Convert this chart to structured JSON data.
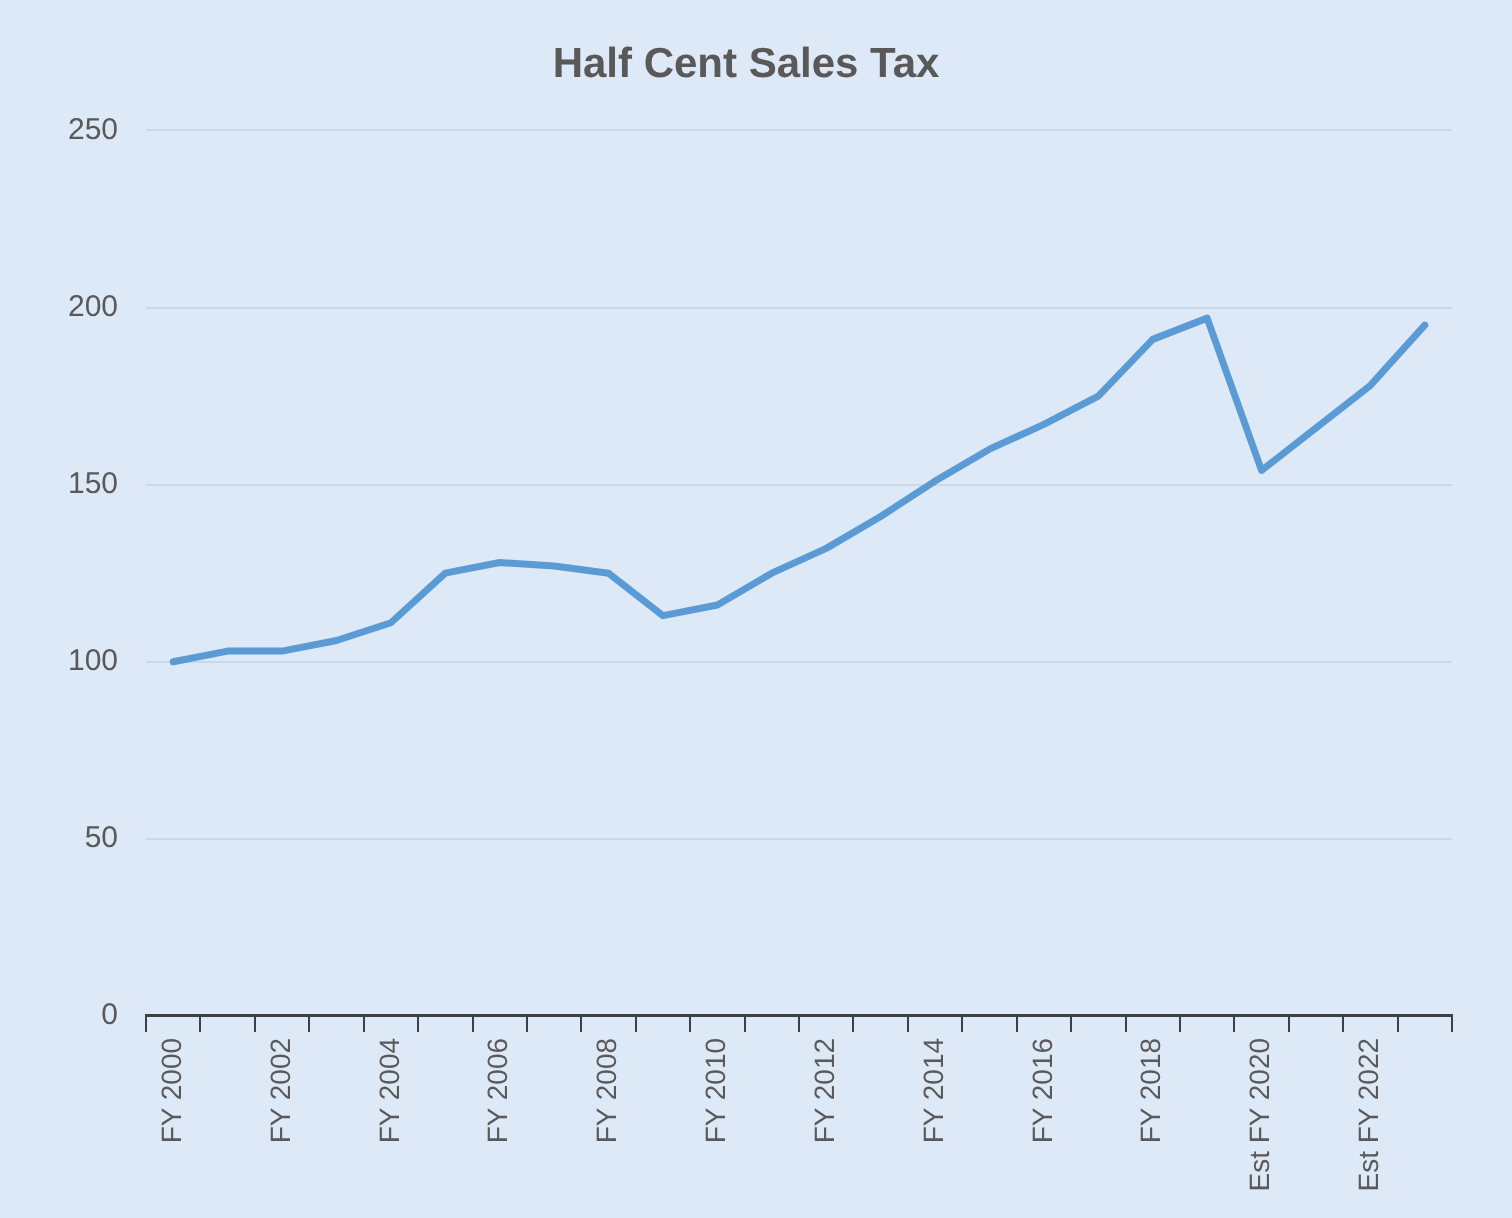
{
  "chart_data": {
    "type": "line",
    "title": "Half Cent Sales Tax",
    "categories": [
      "FY 2000",
      null,
      "FY 2002",
      null,
      "FY 2004",
      null,
      "FY 2006",
      null,
      "FY 2008",
      null,
      "FY 2010",
      null,
      "FY 2012",
      null,
      "FY 2014",
      null,
      "FY 2016",
      null,
      "FY 2018",
      null,
      "Est FY 2020",
      null,
      "Est FY 2022",
      null
    ],
    "series": [
      {
        "color": "#5b9bd5",
        "values": [
          100,
          103,
          103,
          106,
          111,
          125,
          128,
          127,
          125,
          113,
          116,
          125,
          132,
          141,
          151,
          160,
          167,
          175,
          191,
          197,
          154,
          166,
          178,
          195
        ]
      }
    ],
    "ylim": [
      0,
      250
    ],
    "yticks": [
      0,
      50,
      100,
      150,
      200,
      250
    ],
    "grid": "y",
    "legend": false,
    "marker": "none",
    "line_style": "solid"
  }
}
